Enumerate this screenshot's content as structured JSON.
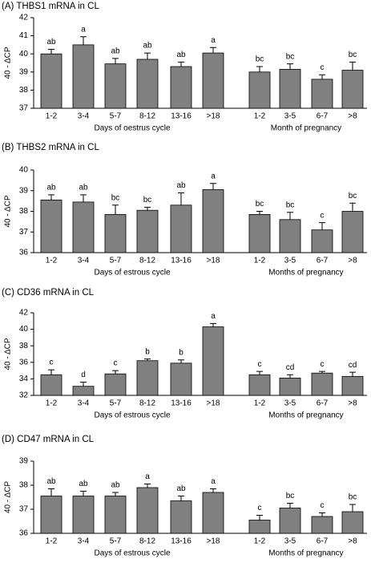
{
  "chart_data": [
    {
      "type": "bar",
      "title": "(A) THBS1 mRNA in CL",
      "ylabel": "40 - ΔCP",
      "color": "#808080",
      "ylim": [
        37,
        42
      ],
      "yticks": [
        37,
        38,
        39,
        40,
        41,
        42
      ],
      "groups": [
        {
          "label": "Days of oestrus cycle",
          "categories": [
            "1-2",
            "3-4",
            "5-7",
            "8-12",
            "13-16",
            ">18"
          ],
          "values": [
            40.0,
            40.5,
            39.45,
            39.7,
            39.3,
            40.05
          ],
          "errors": [
            0.25,
            0.45,
            0.3,
            0.35,
            0.25,
            0.3
          ],
          "letters": [
            "ab",
            "a",
            "ab",
            "ab",
            "ab",
            "a"
          ]
        },
        {
          "label": "Month of pregnancy",
          "categories": [
            "1-2",
            "3-5",
            "6-7",
            ">8"
          ],
          "values": [
            39.0,
            39.15,
            38.6,
            39.1
          ],
          "errors": [
            0.3,
            0.3,
            0.25,
            0.45
          ],
          "letters": [
            "bc",
            "bc",
            "c",
            "bc"
          ]
        }
      ]
    },
    {
      "type": "bar",
      "title": "(B) THBS2 mRNA in CL",
      "ylabel": "40 - ΔCP",
      "color": "#808080",
      "ylim": [
        36,
        40
      ],
      "yticks": [
        36,
        37,
        38,
        39,
        40
      ],
      "groups": [
        {
          "label": "Days of estrous cycle",
          "categories": [
            "1-2",
            "3-4",
            "5-7",
            "8-12",
            "13-16",
            ">18"
          ],
          "values": [
            38.55,
            38.45,
            37.85,
            38.05,
            38.3,
            39.05
          ],
          "errors": [
            0.25,
            0.35,
            0.45,
            0.15,
            0.6,
            0.3
          ],
          "letters": [
            "ab",
            "ab",
            "bc",
            "bc",
            "ab",
            "a"
          ]
        },
        {
          "label": "Months of pregnancy",
          "categories": [
            "1-2",
            "3-5",
            "6-7",
            ">8"
          ],
          "values": [
            37.85,
            37.6,
            37.1,
            38.0
          ],
          "errors": [
            0.15,
            0.35,
            0.35,
            0.4
          ],
          "letters": [
            "bc",
            "bc",
            "c",
            "bc"
          ]
        }
      ]
    },
    {
      "type": "bar",
      "title": "(C) CD36 mRNA in CL",
      "ylabel": "40 - ΔCP",
      "color": "#808080",
      "ylim": [
        32,
        42
      ],
      "yticks": [
        32,
        34,
        36,
        38,
        40,
        42
      ],
      "groups": [
        {
          "label": "Days of estrous cycle",
          "categories": [
            "1-2",
            "3-4",
            "5-7",
            "8-12",
            "13-16",
            ">18"
          ],
          "values": [
            34.5,
            33.1,
            34.6,
            36.2,
            35.9,
            40.3
          ],
          "errors": [
            0.6,
            0.5,
            0.4,
            0.2,
            0.4,
            0.4
          ],
          "letters": [
            "c",
            "d",
            "c",
            "b",
            "b",
            "a"
          ]
        },
        {
          "label": "Months of pregnancy",
          "categories": [
            "1-2",
            "3-5",
            "6-7",
            ">8"
          ],
          "values": [
            34.5,
            34.1,
            34.7,
            34.3
          ],
          "errors": [
            0.4,
            0.4,
            0.2,
            0.5
          ],
          "letters": [
            "c",
            "cd",
            "c",
            "cd"
          ]
        }
      ]
    },
    {
      "type": "bar",
      "title": "(D) CD47 mRNA in CL",
      "ylabel": "40 - ΔCP",
      "color": "#808080",
      "ylim": [
        36,
        39
      ],
      "yticks": [
        36,
        37,
        38,
        39
      ],
      "groups": [
        {
          "label": "Days of estrous cycle",
          "categories": [
            "1-2",
            "3-4",
            "5-7",
            "8-12",
            "13-16",
            ">18"
          ],
          "values": [
            37.55,
            37.55,
            37.55,
            37.9,
            37.35,
            37.7
          ],
          "errors": [
            0.3,
            0.2,
            0.15,
            0.15,
            0.2,
            0.15
          ],
          "letters": [
            "ab",
            "ab",
            "ab",
            "a",
            "ab",
            "a"
          ]
        },
        {
          "label": "Months of pregnancy",
          "categories": [
            "1-2",
            "3-5",
            "6-7",
            ">8"
          ],
          "values": [
            36.55,
            37.05,
            36.7,
            36.9
          ],
          "errors": [
            0.2,
            0.2,
            0.15,
            0.3
          ],
          "letters": [
            "c",
            "bc",
            "c",
            "bc"
          ]
        }
      ]
    }
  ]
}
